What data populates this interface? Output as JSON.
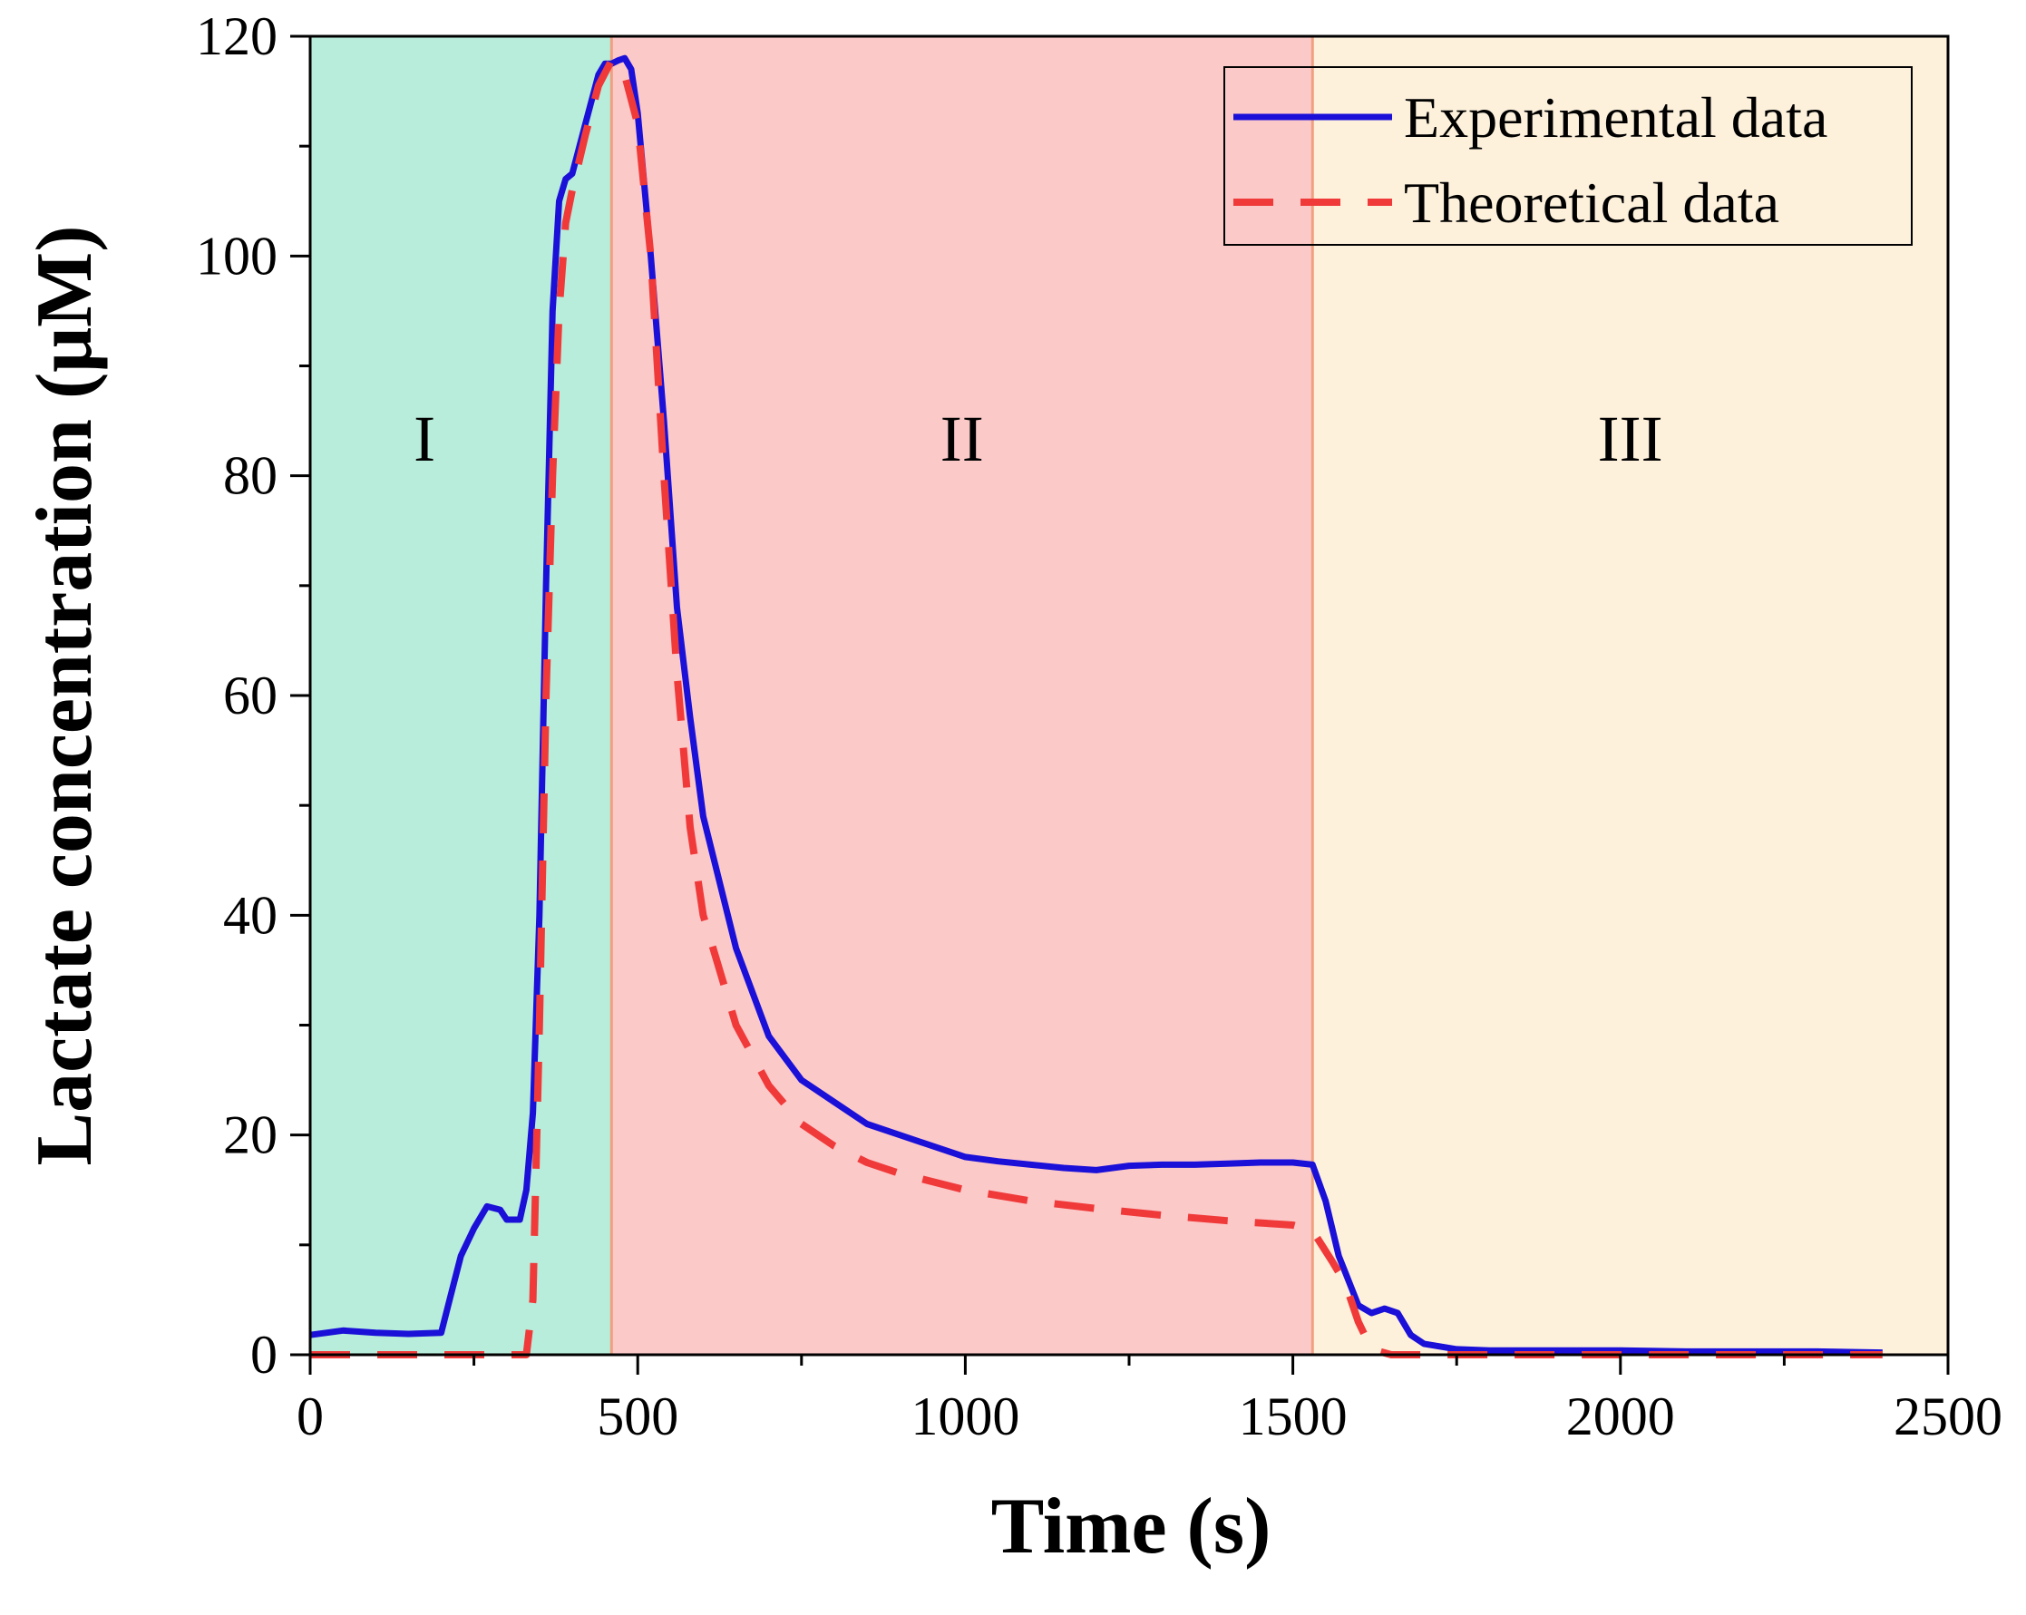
{
  "chart_data": {
    "type": "line",
    "title": "",
    "xlabel": "Time (s)",
    "ylabel": "Lactate concentration (μM)",
    "xlim": [
      0,
      2500
    ],
    "ylim": [
      0,
      120
    ],
    "xticks": [
      0,
      500,
      1000,
      1500,
      2000,
      2500
    ],
    "yticks": [
      0,
      20,
      40,
      60,
      80,
      100,
      120
    ],
    "x_tick_labels": [
      "0",
      "500",
      "1000",
      "1500",
      "2000",
      "2500"
    ],
    "y_tick_labels": [
      "0",
      "20",
      "40",
      "60",
      "80",
      "100",
      "120"
    ],
    "grid": false,
    "legend_position": "top-right",
    "regions": [
      {
        "label": "I",
        "x_start": 0,
        "x_end": 460,
        "color": "#b8ecdb",
        "border": "#5aa88a"
      },
      {
        "label": "II",
        "x_start": 460,
        "x_end": 1530,
        "color": "#fcc9c9",
        "border": "#f0a080"
      },
      {
        "label": "III",
        "x_start": 1530,
        "x_end": 2500,
        "color": "#fdf1dc",
        "border": "#f0a080"
      }
    ],
    "series": [
      {
        "name": "Experimental data",
        "style": "solid",
        "color": "#1a10d8",
        "x": [
          0,
          50,
          100,
          150,
          200,
          215,
          230,
          250,
          270,
          290,
          300,
          320,
          330,
          340,
          350,
          360,
          370,
          380,
          390,
          400,
          420,
          440,
          450,
          460,
          470,
          480,
          490,
          500,
          520,
          540,
          560,
          580,
          600,
          650,
          700,
          750,
          800,
          850,
          900,
          950,
          1000,
          1050,
          1100,
          1150,
          1200,
          1250,
          1300,
          1350,
          1400,
          1450,
          1500,
          1530,
          1550,
          1570,
          1600,
          1620,
          1640,
          1660,
          1680,
          1700,
          1750,
          1800,
          1850,
          1900,
          2000,
          2100,
          2200,
          2300,
          2400
        ],
        "y": [
          1.8,
          2.2,
          2.0,
          1.9,
          2.0,
          5.5,
          9.0,
          11.5,
          13.5,
          13.2,
          12.3,
          12.3,
          15.0,
          22.0,
          40.0,
          70.0,
          95.0,
          105.0,
          107.0,
          107.5,
          112.0,
          116.5,
          117.5,
          117.5,
          117.8,
          118.0,
          117.0,
          113.0,
          100.0,
          85.0,
          68.0,
          58.0,
          49.0,
          37.0,
          29.0,
          25.0,
          23.0,
          21.0,
          20.0,
          19.0,
          18.0,
          17.6,
          17.3,
          17.0,
          16.8,
          17.2,
          17.3,
          17.3,
          17.4,
          17.5,
          17.5,
          17.3,
          14.0,
          9.0,
          4.5,
          3.8,
          4.2,
          3.8,
          1.8,
          1.0,
          0.5,
          0.4,
          0.4,
          0.4,
          0.4,
          0.3,
          0.3,
          0.3,
          0.2
        ]
      },
      {
        "name": "Theoretical data",
        "style": "dashed",
        "color": "#f03a3a",
        "x": [
          0,
          100,
          200,
          300,
          330,
          340,
          350,
          360,
          370,
          380,
          390,
          400,
          420,
          440,
          460,
          480,
          500,
          520,
          540,
          560,
          580,
          600,
          650,
          700,
          750,
          800,
          850,
          900,
          1000,
          1100,
          1200,
          1300,
          1400,
          1500,
          1530,
          1560,
          1580,
          1600,
          1620,
          1650,
          1700,
          1800,
          2000,
          2200,
          2400
        ],
        "y": [
          0,
          0,
          0,
          0,
          0,
          5.0,
          30.0,
          60.0,
          80.0,
          95.0,
          103.0,
          106.0,
          111.0,
          115.5,
          117.8,
          116.5,
          112.0,
          100.0,
          80.0,
          62.0,
          48.0,
          40.0,
          30.0,
          24.5,
          21.0,
          19.0,
          17.5,
          16.5,
          15.0,
          14.0,
          13.3,
          12.7,
          12.2,
          11.8,
          11.3,
          8.5,
          6.5,
          3.0,
          0.5,
          0,
          0,
          0,
          0,
          0,
          0
        ]
      }
    ]
  }
}
